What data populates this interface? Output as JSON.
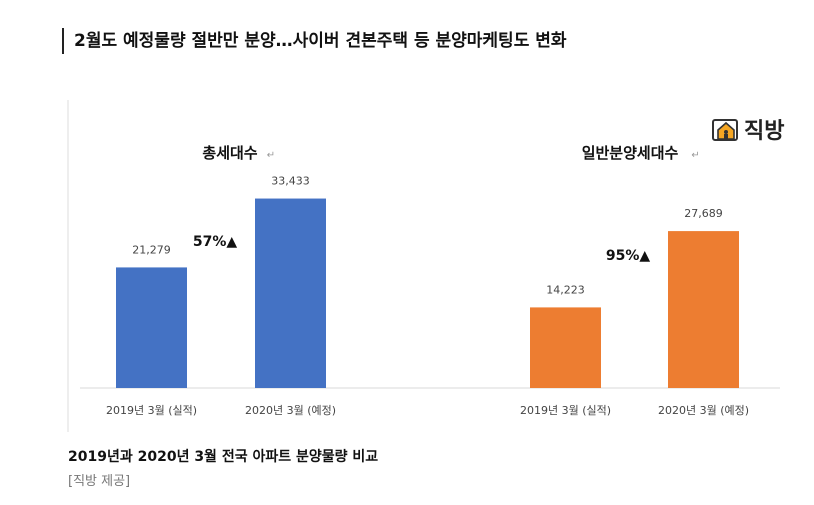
{
  "headline": "2월도 예정물량 절반만 분양…사이버 견본주택 등 분양마케팅도 변화",
  "caption": "2019년과 2020년 3월 전국 아파트 분양물량 비교",
  "credit": "[직방 제공]",
  "logo": {
    "text": "직방",
    "icon": "house-logo-icon"
  },
  "chart_data": [
    {
      "type": "bar",
      "title": "총세대수",
      "title_mark": "↵",
      "categories": [
        "2019년 3월 (실적)",
        "2020년 3월 (예정)"
      ],
      "values": [
        21279,
        33433
      ],
      "value_labels": [
        "21,279",
        "33,433"
      ],
      "color": "#4472C4",
      "annotation": "57%▲",
      "ylim": [
        0,
        36000
      ]
    },
    {
      "type": "bar",
      "title": "일반분양세대수",
      "title_mark": "↵",
      "categories": [
        "2019년 3월 (실적)",
        "2020년 3월 (예정)"
      ],
      "values": [
        14223,
        27689
      ],
      "value_labels": [
        "14,223",
        "27,689"
      ],
      "color": "#ED7D31",
      "annotation": "95%▲",
      "ylim": [
        0,
        36000
      ]
    }
  ]
}
